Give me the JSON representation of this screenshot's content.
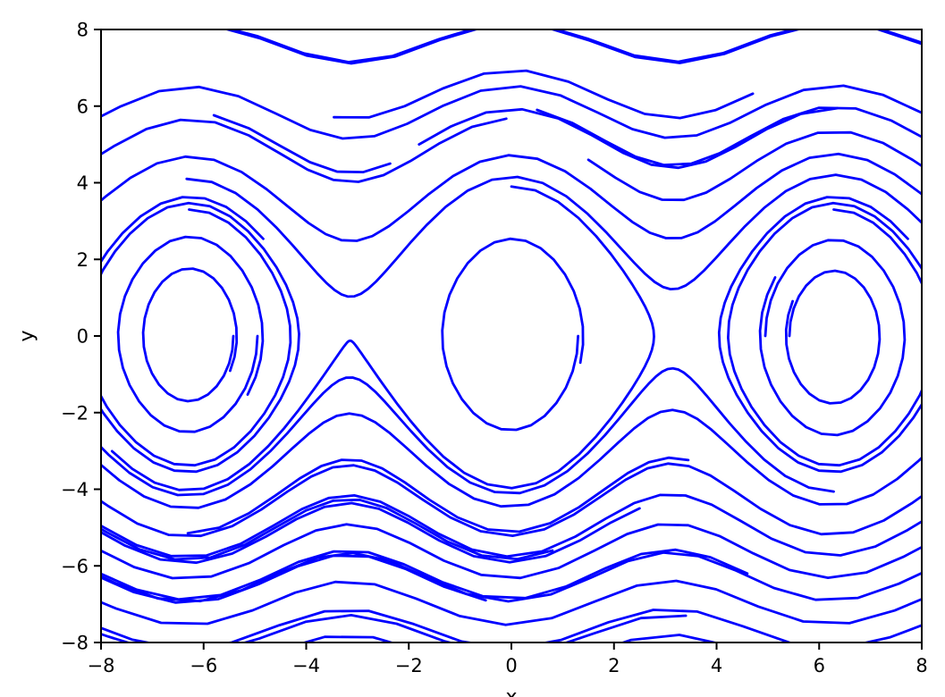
{
  "figure": {
    "background": "#ffffff",
    "spine_color": "#000000",
    "text_color": "#000000"
  },
  "chart_data": {
    "type": "line",
    "subtype": "phase-portrait-contour-style",
    "title": "",
    "xlabel": "x",
    "ylabel": "y",
    "xlim": [
      -8,
      8
    ],
    "ylim": [
      -8,
      8
    ],
    "x_ticks": [
      -8,
      -6,
      -4,
      -2,
      0,
      2,
      4,
      6,
      8
    ],
    "y_ticks": [
      -8,
      -6,
      -4,
      -2,
      0,
      2,
      4,
      6,
      8
    ],
    "grid": false,
    "legend": false,
    "line_color": "#0000ff",
    "line_width": 2.8,
    "description": "Family of blue trajectories of the pendulum-like system dx/dt = y, dy/dt = -k*sin(x); closed orbits around centers at x = 0 and ±2π, saddle points at ±π, wavy pass-over trajectories above and below, clipped at the axes box. Jagged appearance from coarse polyline sampling.",
    "system": {
      "k": 4,
      "dt": 0.012,
      "stride": 10
    },
    "trajectories": [
      [
        -5.85,
        8.12,
        180
      ],
      [
        -6.9,
        8.08,
        210
      ],
      [
        -8.3,
        5.53,
        380
      ],
      [
        -8.3,
        4.5,
        140
      ],
      [
        -8.3,
        3.2,
        560
      ],
      [
        -6.33,
        4.1,
        800
      ],
      [
        -5.8,
        5.76,
        60
      ],
      [
        -3.46,
        5.71,
        110
      ],
      [
        -1.8,
        5.0,
        130
      ],
      [
        0.5,
        5.9,
        200
      ],
      [
        1.5,
        4.6,
        230
      ],
      [
        6.283,
        -4.06,
        800
      ],
      [
        8.3,
        -2.8,
        500
      ],
      [
        8.3,
        -3.9,
        560
      ],
      [
        8.3,
        -4.6,
        500
      ],
      [
        8.3,
        -5.3,
        440
      ],
      [
        8.3,
        -6.0,
        400
      ],
      [
        8.3,
        -6.7,
        360
      ],
      [
        8.3,
        -7.4,
        330
      ],
      [
        8.3,
        -8.05,
        300
      ],
      [
        3.45,
        -3.24,
        200
      ],
      [
        2.5,
        -4.5,
        240
      ],
      [
        0.8,
        -5.6,
        220
      ],
      [
        4.6,
        -6.2,
        260
      ],
      [
        -0.5,
        -6.9,
        160
      ],
      [
        3.4,
        -7.3,
        150
      ],
      [
        1.3,
        0.0,
        310
      ],
      [
        0.0,
        3.9,
        700
      ],
      [
        -5.42,
        0.0,
        300
      ],
      [
        -4.95,
        0.0,
        330
      ],
      [
        -6.283,
        3.3,
        760
      ],
      [
        5.42,
        0.0,
        300
      ],
      [
        4.95,
        0.0,
        330
      ],
      [
        6.283,
        3.3,
        760
      ]
    ]
  }
}
